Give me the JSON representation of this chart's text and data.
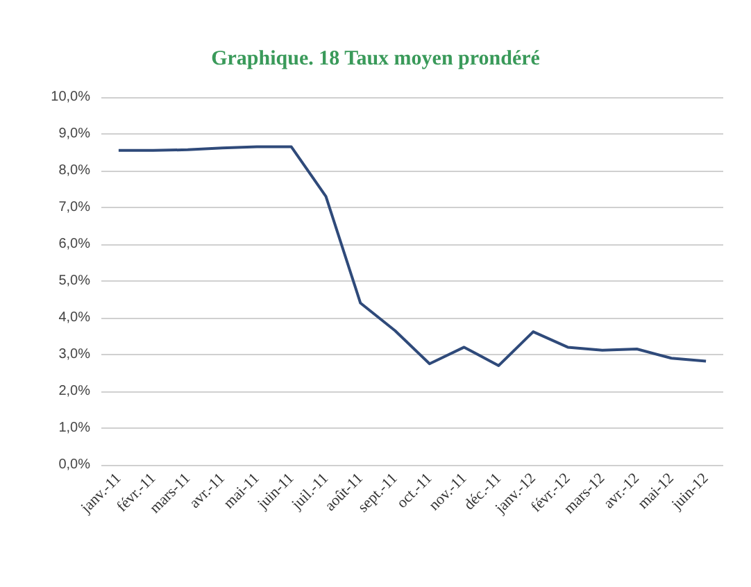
{
  "chart_data": {
    "type": "line",
    "title": "Graphique. 18 Taux moyen prondéré",
    "categories": [
      "janv.-11",
      "févr.-11",
      "mars-11",
      "avr.-11",
      "mai-11",
      "juin-11",
      "juil.-11",
      "août-11",
      "sept.-11",
      "oct.-11",
      "nov.-11",
      "déc.-11",
      "janv.-12",
      "févr.-12",
      "mars-12",
      "avr.-12",
      "mai-12",
      "juin-12"
    ],
    "series": [
      {
        "color": "#2f4a7a",
        "values": [
          8.55,
          8.55,
          8.57,
          8.62,
          8.65,
          8.65,
          7.3,
          4.4,
          3.65,
          2.75,
          3.2,
          2.7,
          3.62,
          3.2,
          3.12,
          3.15,
          2.9,
          2.82
        ]
      }
    ],
    "ylim": [
      0,
      10
    ],
    "yticks": [
      {
        "value": 0,
        "label": "0,0%"
      },
      {
        "value": 1,
        "label": "1,0%"
      },
      {
        "value": 2,
        "label": "2,0%"
      },
      {
        "value": 3,
        "label": "3,0%"
      },
      {
        "value": 4,
        "label": "4,0%"
      },
      {
        "value": 5,
        "label": "5,0%"
      },
      {
        "value": 6,
        "label": "6,0%"
      },
      {
        "value": 7,
        "label": "7,0%"
      },
      {
        "value": 8,
        "label": "8,0%"
      },
      {
        "value": 9,
        "label": "9,0%"
      },
      {
        "value": 10,
        "label": "10,0%"
      }
    ],
    "grid": "y",
    "marker": "none",
    "line_style": "solid"
  }
}
